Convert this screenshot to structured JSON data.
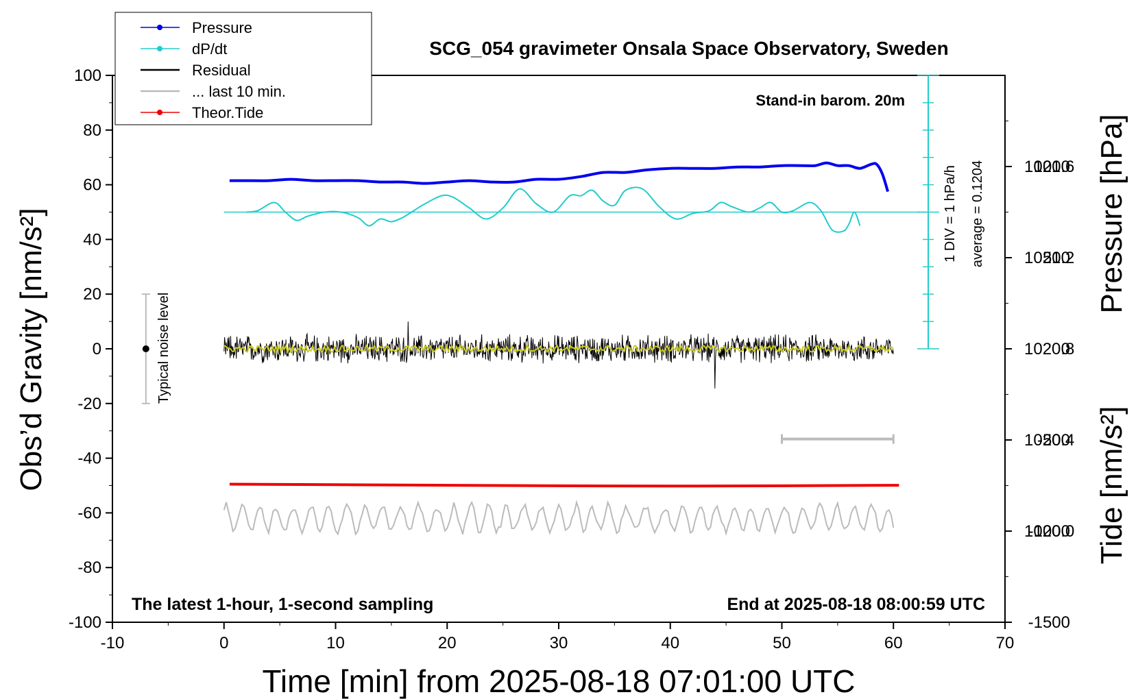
{
  "chart_data": {
    "type": "line",
    "title": "SCG_054 gravimeter Onsala Space Observatory, Sweden",
    "xlabel": "Time [min] from 2025-08-18 07:01:00 UTC",
    "ylabel_left": "Obs’d Gravity [nm/s²]",
    "ylabel_right_pressure": "Pressure [hPa]",
    "ylabel_right_tide": "Tide [nm/s²]",
    "xlim": [
      -10,
      70
    ],
    "ylim": [
      -100,
      100
    ],
    "x_ticks": [
      "-10",
      "0",
      "10",
      "20",
      "30",
      "40",
      "50",
      "60",
      "70"
    ],
    "y_ticks": [
      "100",
      "80",
      "60",
      "40",
      "20",
      "0",
      "-20",
      "-40",
      "-60",
      "-80",
      "-100"
    ],
    "pressure_axis": {
      "ticks": [
        {
          "label": "1021.6",
          "value": 1021.6
        },
        {
          "label": "1021.2",
          "value": 1021.2
        },
        {
          "label": "1020.8",
          "value": 1020.8
        },
        {
          "label": "1020.4",
          "value": 1020.4
        },
        {
          "label": "1020.0",
          "value": 1020.0
        }
      ],
      "range": [
        1019.6,
        1022.0
      ]
    },
    "tide_axis": {
      "ticks": [
        {
          "label": "1000",
          "value": 1000
        },
        {
          "label": "500",
          "value": 500
        },
        {
          "label": "0",
          "value": 0
        },
        {
          "label": "-500",
          "value": -500
        },
        {
          "label": "-1000",
          "value": -1000
        },
        {
          "label": "-1500",
          "value": -1500
        }
      ],
      "range": [
        -1500,
        1500
      ]
    },
    "legend": {
      "placement": "top-left",
      "entries": [
        {
          "name": "Pressure",
          "color": "#0000ee",
          "marker": true
        },
        {
          "name": "dP/dt",
          "color": "#22cccc",
          "marker": true
        },
        {
          "name": "Residual",
          "color": "#000000",
          "marker": false
        },
        {
          "name": "... last 10 min.",
          "color": "#bbbbbb",
          "marker": false
        },
        {
          "name": "Theor.Tide",
          "color": "#ee0000",
          "marker": true
        }
      ]
    },
    "annotations": {
      "barometer": "Stand-in barom. 20m",
      "div_label": "1 DIV = 1 hPa/h",
      "average_label": "average = 0.1204",
      "noise_label": "Typical noise level",
      "sampling_label": "The latest 1-hour, 1-second sampling",
      "end_label": "End at 2025-08-18 08:00:59 UTC"
    },
    "noise_bar": {
      "x": -7,
      "center": 0,
      "low": -20,
      "high": 20
    },
    "last10_bar": {
      "x_start": 50,
      "x_end": 60,
      "y": -33
    },
    "dpdt_baseline": 50,
    "series": [
      {
        "name": "Pressure",
        "color": "#0000ee",
        "x": [
          0.5,
          2,
          4,
          6,
          8,
          10,
          12,
          14,
          16,
          18,
          20,
          22,
          24,
          26,
          28,
          30,
          32,
          34,
          36,
          38,
          40,
          42,
          44,
          46,
          48,
          50,
          52,
          53,
          54,
          55,
          56,
          57,
          58,
          58.5,
          59,
          59.5
        ],
        "values": [
          61.5,
          61.5,
          61.5,
          62,
          61.5,
          61.5,
          61.5,
          61,
          61,
          60.5,
          61,
          61.5,
          61,
          61,
          62,
          62,
          63,
          64.5,
          64.5,
          65.5,
          66,
          66,
          66,
          66.5,
          66.5,
          67,
          67,
          67,
          68,
          67,
          67,
          66,
          67.5,
          67.5,
          64,
          57.5
        ]
      },
      {
        "name": "dP/dt",
        "color": "#22cccc",
        "x": [
          2,
          3,
          4.5,
          5.5,
          6.5,
          7.5,
          9,
          10.5,
          12,
          13,
          14,
          15,
          16,
          17,
          18,
          19.5,
          20.5,
          22,
          23.5,
          25,
          26.5,
          28,
          29.5,
          31,
          32,
          33,
          34,
          35,
          36,
          37.5,
          39,
          40.5,
          42,
          43.5,
          44.5,
          45.5,
          47,
          48,
          49,
          50,
          51,
          52.5,
          53.5,
          54.5,
          55.5,
          56,
          56.5,
          57
        ],
        "values": [
          50,
          50.5,
          53.5,
          50,
          47,
          48.5,
          50,
          50,
          48,
          45,
          47.5,
          46.5,
          48,
          50.5,
          53,
          56,
          55.5,
          51.5,
          47.5,
          51.5,
          58.5,
          53,
          50,
          56,
          56,
          58,
          54,
          52.5,
          58,
          58.5,
          52,
          47.5,
          49.5,
          50.5,
          53.5,
          52,
          50,
          51.5,
          53.5,
          50,
          50.5,
          53.5,
          50.5,
          43.5,
          43,
          45.5,
          50,
          45
        ]
      },
      {
        "name": "Residual",
        "color": "#000000",
        "x_start": 0,
        "x_end": 60,
        "center": 0,
        "typical_amplitude": 4,
        "max": 10,
        "min": -14.5
      },
      {
        "name": "... last 10 min.",
        "color": "#bbbbbb",
        "x_start": 0,
        "x_end": 60,
        "center": -62,
        "typical_amplitude": 5,
        "max": -54,
        "min": -71
      },
      {
        "name": "Theor.Tide",
        "color": "#ee0000",
        "x": [
          0.5,
          10,
          20,
          30,
          40,
          50,
          60.5
        ],
        "values": [
          -49.5,
          -49.7,
          -49.9,
          -50.1,
          -50.2,
          -50.1,
          -49.9
        ]
      }
    ]
  }
}
